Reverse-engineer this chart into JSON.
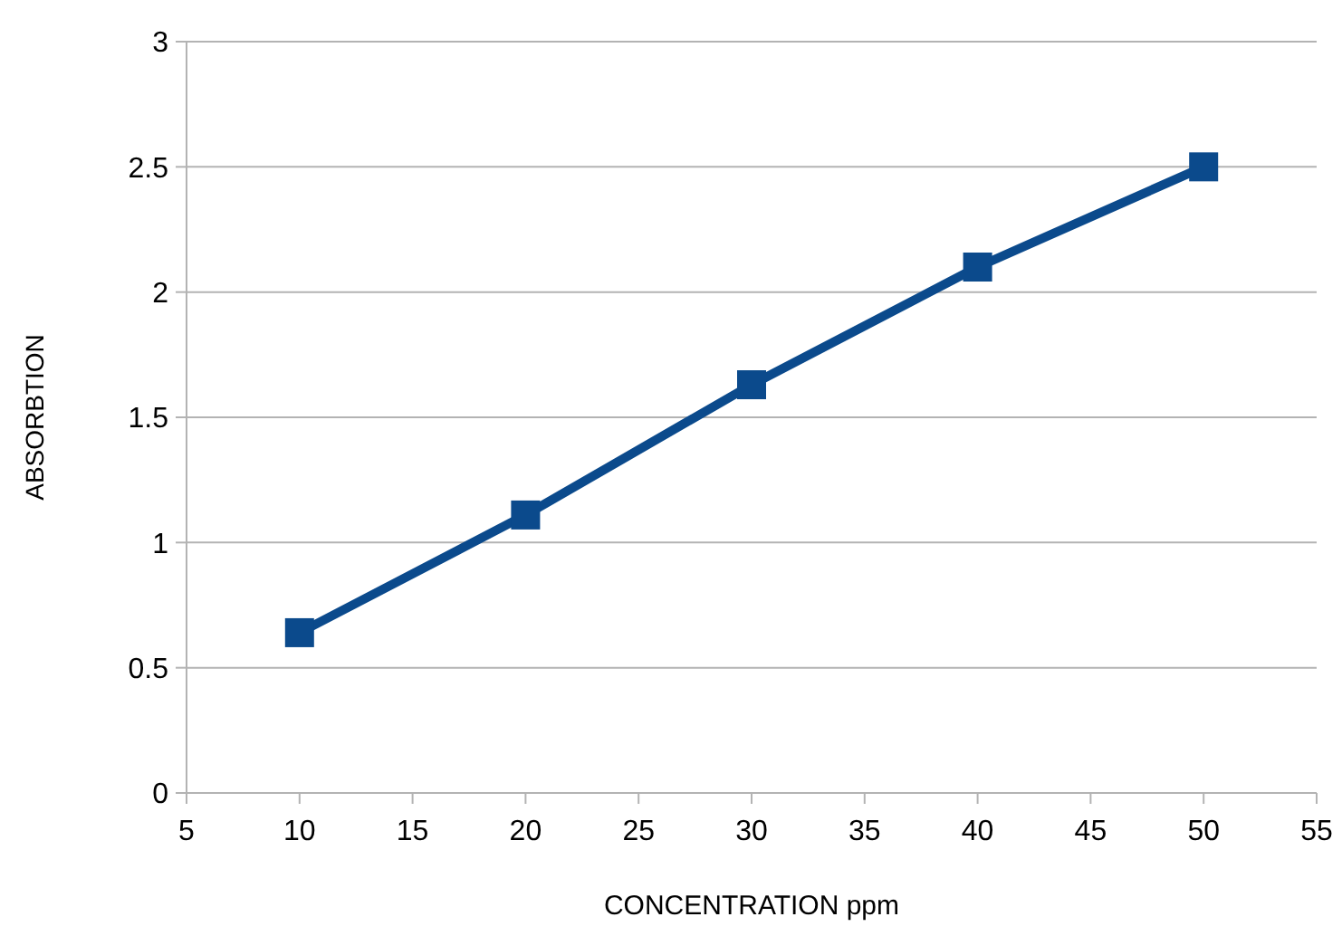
{
  "chart_data": {
    "type": "line",
    "xlabel": "CONCENTRATION ppm",
    "ylabel": "ABSORBTION",
    "x": [
      10,
      20,
      30,
      40,
      50
    ],
    "series": [
      {
        "color": "#0b4a8c",
        "values": [
          0.64,
          1.11,
          1.63,
          2.1,
          2.5
        ]
      }
    ],
    "xlim": [
      5,
      55
    ],
    "xticks": [
      5,
      10,
      15,
      20,
      25,
      30,
      35,
      40,
      45,
      50,
      55
    ],
    "ylim": [
      0,
      3
    ],
    "yticks": [
      0,
      0.5,
      1,
      1.5,
      2,
      2.5,
      3
    ],
    "grid": "y",
    "marker": "square",
    "line_style": "solid"
  }
}
